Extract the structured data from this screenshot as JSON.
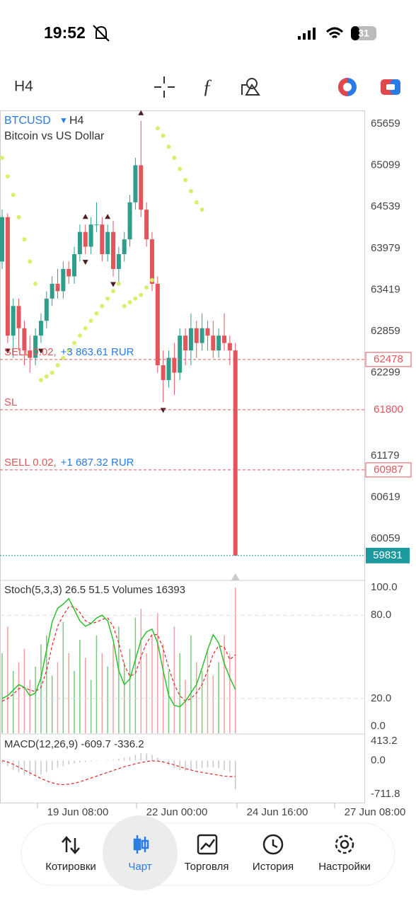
{
  "status_bar": {
    "time": "19:52",
    "battery": "31"
  },
  "toolbar": {
    "timeframe": "H4"
  },
  "chart": {
    "symbol": "BTCUSD",
    "timeframe": "H4",
    "description": "Bitcoin vs US Dollar",
    "price_ticks": [
      65659,
      65099,
      64539,
      63979,
      63419,
      62859,
      62299,
      61179,
      60619,
      60059
    ],
    "candles": [
      [
        63800,
        64500,
        63700,
        64400
      ],
      [
        64400,
        64450,
        62700,
        62800
      ],
      [
        62800,
        63300,
        62500,
        63200
      ],
      [
        63200,
        63300,
        62600,
        62900
      ],
      [
        62900,
        63000,
        62400,
        62600
      ],
      [
        62600,
        62800,
        62300,
        62500
      ],
      [
        62500,
        62900,
        62400,
        62800
      ],
      [
        62800,
        63100,
        62700,
        63000
      ],
      [
        63000,
        63400,
        62900,
        63300
      ],
      [
        63300,
        63600,
        63200,
        63500
      ],
      [
        63500,
        63700,
        63300,
        63400
      ],
      [
        63400,
        63800,
        63300,
        63700
      ],
      [
        63700,
        63800,
        63500,
        63600
      ],
      [
        63600,
        64000,
        63500,
        63900
      ],
      [
        63900,
        64300,
        63800,
        64200
      ],
      [
        64200,
        64300,
        63900,
        64000
      ],
      [
        64000,
        64400,
        63900,
        64300
      ],
      [
        64300,
        64600,
        64200,
        64300
      ],
      [
        64300,
        64400,
        63800,
        63900
      ],
      [
        63900,
        64300,
        63800,
        64200
      ],
      [
        64200,
        64350,
        63600,
        63700
      ],
      [
        63700,
        64000,
        63500,
        63900
      ],
      [
        63900,
        64200,
        63800,
        64100
      ],
      [
        64100,
        64700,
        64000,
        64600
      ],
      [
        64600,
        65200,
        64500,
        65100
      ],
      [
        65100,
        65700,
        64400,
        64500
      ],
      [
        64500,
        64600,
        64000,
        64100
      ],
      [
        64100,
        64200,
        63400,
        63500
      ],
      [
        63500,
        63600,
        62300,
        62400
      ],
      [
        62400,
        62600,
        61900,
        62200
      ],
      [
        62200,
        62600,
        62100,
        62500
      ],
      [
        62500,
        62700,
        62000,
        62300
      ],
      [
        62300,
        62900,
        62200,
        62800
      ],
      [
        62800,
        62900,
        62400,
        62600
      ],
      [
        62600,
        63100,
        62400,
        62900
      ],
      [
        62900,
        63000,
        62500,
        62700
      ],
      [
        62700,
        63100,
        62600,
        62900
      ],
      [
        62900,
        63000,
        62600,
        62800
      ],
      [
        62800,
        63000,
        62500,
        62600
      ],
      [
        62600,
        62900,
        62500,
        62800
      ],
      [
        62800,
        63100,
        62600,
        62700
      ],
      [
        62700,
        62800,
        62400,
        62600
      ],
      [
        62600,
        62700,
        59831,
        59831
      ]
    ],
    "sar": [
      65200,
      64950,
      64700,
      64400,
      64100,
      63800,
      63500,
      62200,
      62250,
      62300,
      62400,
      62500,
      62600,
      62700,
      62800,
      62900,
      63000,
      63100,
      63200,
      63300,
      63400,
      63500,
      63200,
      63250,
      63300,
      63350,
      63450,
      63550,
      65600,
      65500,
      65350,
      65200,
      65050,
      64900,
      64750,
      64600,
      64500,
      null,
      null,
      null,
      null,
      null,
      null
    ],
    "orders": [
      {
        "side": "SELL 0.02,",
        "profit": "+3 863.61 RUR",
        "price": 62478
      },
      {
        "label": "SL",
        "price": 61800
      },
      {
        "side": "SELL 0.02,",
        "profit": "+1 687.32 RUR",
        "price": 60987
      }
    ],
    "current_price": 59831,
    "time_labels": [
      "19 Jun 08:00",
      "22 Jun 00:00",
      "24 Jun 16:00",
      "27 Jun 08:00"
    ]
  },
  "stoch": {
    "header": "Stoch(5,3,3) 26.5 51.5 Volumes 16393",
    "ticks": [
      {
        "value": 100,
        "label": "100.0"
      },
      {
        "value": 80,
        "label": "80.0"
      },
      {
        "value": 20,
        "label": "20.0"
      },
      {
        "value": 0,
        "label": "0.0"
      }
    ],
    "main": [
      20,
      22,
      26,
      30,
      28,
      22,
      24,
      35,
      55,
      75,
      85,
      88,
      92,
      84,
      76,
      72,
      74,
      78,
      80,
      76,
      62,
      40,
      30,
      34,
      48,
      62,
      68,
      70,
      60,
      40,
      22,
      15,
      14,
      18,
      24,
      30,
      42,
      55,
      66,
      60,
      45,
      35,
      26.5
    ],
    "signal": [
      18,
      20,
      23,
      27,
      28,
      26,
      25,
      28,
      40,
      58,
      72,
      80,
      86,
      86,
      82,
      76,
      74,
      75,
      77,
      78,
      72,
      60,
      44,
      36,
      38,
      50,
      60,
      66,
      66,
      56,
      42,
      30,
      22,
      18,
      20,
      24,
      30,
      40,
      52,
      58,
      57,
      48,
      51.5
    ],
    "volumes": [
      9000,
      12000,
      7000,
      8000,
      9500,
      6000,
      7500,
      10000,
      11000,
      6500,
      8000,
      12500,
      9000,
      7000,
      10500,
      8500,
      6000,
      11000,
      9000,
      7500,
      10000,
      12000,
      8000,
      9500,
      13000,
      14000,
      9000,
      11000,
      13500,
      10000,
      7000,
      12000,
      9000,
      6000,
      11000,
      8000,
      7000,
      9500,
      6500,
      8000,
      11000,
      9000,
      16393
    ]
  },
  "macd": {
    "header": "MACD(12,26,9) -609.7 -336.2",
    "ticks": [
      {
        "value": 413.2,
        "label": "413.2"
      },
      {
        "value": 0,
        "label": "0.0"
      },
      {
        "value": -711.8,
        "label": "-711.8"
      }
    ],
    "histogram": [
      -50,
      -120,
      -200,
      -250,
      -300,
      -320,
      -330,
      -300,
      -250,
      -200,
      -150,
      -120,
      -80,
      -60,
      -40,
      -30,
      -20,
      -10,
      0,
      10,
      20,
      40,
      60,
      80,
      120,
      160,
      150,
      120,
      60,
      -20,
      -100,
      -160,
      -200,
      -220,
      -200,
      -180,
      -160,
      -150,
      -140,
      -160,
      -200,
      -250,
      -609.7
    ],
    "signal": [
      0,
      -30,
      -80,
      -140,
      -200,
      -260,
      -320,
      -380,
      -430,
      -470,
      -500,
      -510,
      -500,
      -480,
      -450,
      -410,
      -370,
      -330,
      -290,
      -250,
      -210,
      -170,
      -130,
      -100,
      -70,
      -40,
      -20,
      -5,
      -10,
      -30,
      -60,
      -90,
      -130,
      -170,
      -200,
      -230,
      -250,
      -270,
      -290,
      -310,
      -330,
      -340,
      -336.2
    ]
  },
  "nav": [
    "Котировки",
    "Чарт",
    "Торговля",
    "История",
    "Настройки"
  ]
}
